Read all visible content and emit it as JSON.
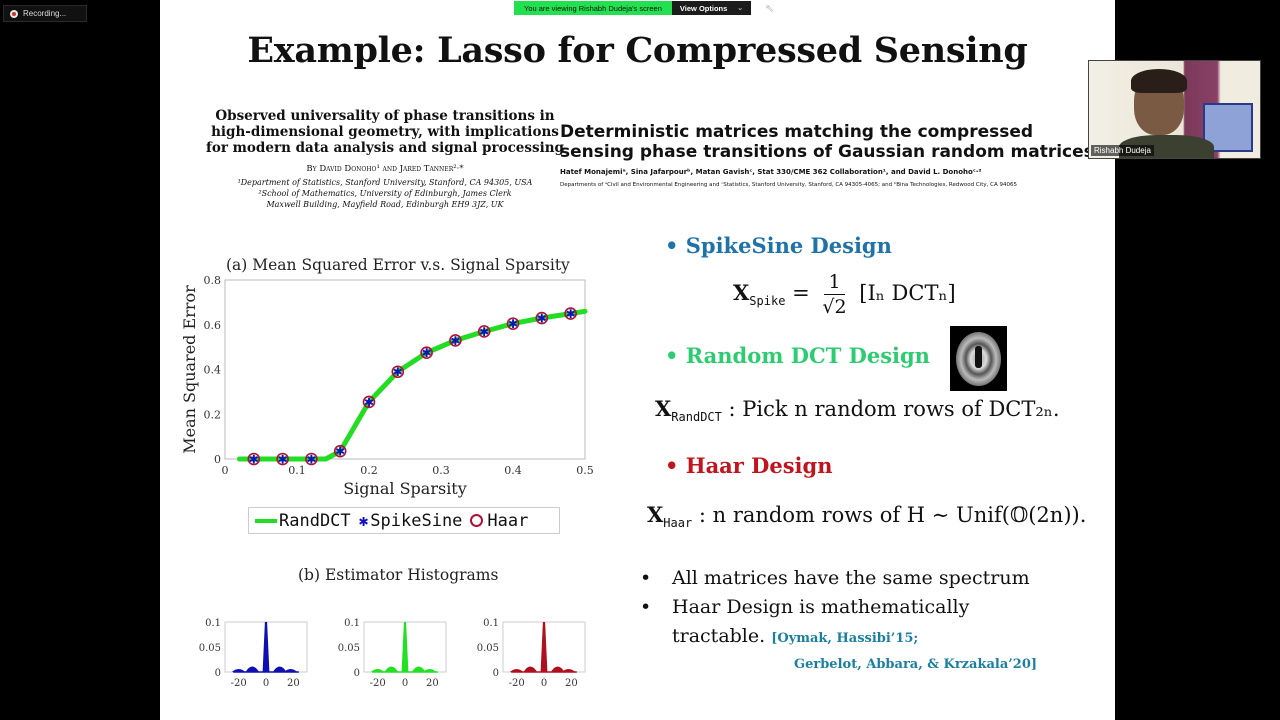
{
  "zoom_ui": {
    "recording_label": "Recording...",
    "share_banner_text": "You are viewing Rishabh Dudeja's screen",
    "view_options_label": "View Options",
    "chevron": "⌄",
    "participant_name": "Rishabh Dudeja"
  },
  "slide": {
    "title": "Example: Lasso for Compressed Sensing",
    "paper1": {
      "title_lines": [
        "Observed universality of phase transitions in",
        "high-dimensional geometry, with implications",
        "for modern data analysis and signal processing"
      ],
      "authors": "By David Donoho¹ and Jared Tanner²·*",
      "affiliations": [
        "¹Department of Statistics, Stanford University, Stanford, CA 94305, USA",
        "²School of Mathematics, University of Edinburgh, James Clerk",
        "Maxwell Building, Mayfield Road, Edinburgh EH9 3JZ, UK"
      ]
    },
    "paper2": {
      "title_lines": [
        "Deterministic matrices matching the compressed",
        "sensing phase transitions of Gaussian random matrices"
      ],
      "authors": "Hatef Monajemiᵃ, Sina Jafarpourᵇ, Matan Gavishᶜ, Stat 330/CME 362 Collaboration¹, and David L. Donohoᶜ·²",
      "affiliations": "Departments of ᵃCivil and Environmental Engineering and ᶜStatistics, Stanford University, Stanford, CA 94305-4065; and ᵇBina Technologies, Redwood City, CA 94065"
    },
    "legend": {
      "randdct": "RandDCT",
      "spikesine": "SpikeSine",
      "haar": "Haar",
      "star": "✱"
    },
    "hist_title": "(b) Estimator Histograms",
    "right": {
      "spikesine_head": "• SpikeSine Design",
      "spikesine_color": "#1f73a8",
      "spike_X": "X",
      "spike_sub": "Spike",
      "spike_eq": "=",
      "spike_num": "1",
      "spike_den": "√2",
      "spike_matrix": "[Iₙ   DCTₙ]",
      "randdct_head": "• Random DCT Design",
      "randdct_color": "#2ecc71",
      "randdct_X": "X",
      "randdct_sub": "RandDCT",
      "randdct_text": " : Pick n random rows of DCT₂ₙ.",
      "haar_head": "• Haar Design",
      "haar_color": "#c0141e",
      "haar_X": "X",
      "haar_sub": "Haar",
      "haar_text": " : n random rows of H ∼ Unif(𝕆(2n)).",
      "points": [
        "All matrices have the same spectrum",
        "Haar Design is mathematically"
      ],
      "point2_cont": "tractable. ",
      "cite1": "[Oymak, Hassibi’15;",
      "cite2": "Gerbelot, Abbara, & Krzakala’20]",
      "bullet": "•"
    }
  },
  "chart_data": [
    {
      "type": "line",
      "title": "(a) Mean Squared Error v.s. Signal Sparsity",
      "xlabel": "Signal Sparsity",
      "ylabel": "Mean Squared Error",
      "xlim": [
        0,
        0.5
      ],
      "ylim": [
        0,
        0.8
      ],
      "xticks": [
        "0",
        "0.1",
        "0.2",
        "0.3",
        "0.4",
        "0.5"
      ],
      "yticks": [
        "0",
        "0.2",
        "0.4",
        "0.6",
        "0.8"
      ],
      "x": [
        0.04,
        0.08,
        0.12,
        0.16,
        0.2,
        0.24,
        0.28,
        0.32,
        0.36,
        0.4,
        0.44,
        0.48
      ],
      "series": [
        {
          "name": "RandDCT",
          "style": "line",
          "color": "#22dd22",
          "values": [
            0,
            0,
            0,
            0.035,
            0.255,
            0.39,
            0.475,
            0.53,
            0.57,
            0.605,
            0.63,
            0.65
          ]
        },
        {
          "name": "SpikeSine",
          "style": "star",
          "color": "#1010c0",
          "values": [
            0,
            0,
            0,
            0.035,
            0.255,
            0.39,
            0.475,
            0.53,
            0.57,
            0.605,
            0.63,
            0.65
          ]
        },
        {
          "name": "Haar",
          "style": "circle",
          "color": "#b0103a",
          "values": [
            0,
            0,
            0,
            0.035,
            0.255,
            0.39,
            0.475,
            0.53,
            0.57,
            0.605,
            0.63,
            0.65
          ]
        }
      ],
      "legend_position": "below"
    },
    {
      "type": "area",
      "title": "(b) Estimator Histograms",
      "panels": [
        {
          "name": "SpikeSine",
          "color": "#1010b0"
        },
        {
          "name": "RandDCT",
          "color": "#22e022"
        },
        {
          "name": "Haar",
          "color": "#b0101e"
        }
      ],
      "xticks": [
        "-20",
        "0",
        "20"
      ],
      "yticks": [
        "0",
        "0.05",
        "0.1"
      ],
      "ylim": [
        0,
        0.1
      ],
      "x": [
        -20,
        -10,
        0,
        10,
        18
      ],
      "values": [
        0.008,
        0.018,
        0.1,
        0.018,
        0.008
      ]
    }
  ]
}
